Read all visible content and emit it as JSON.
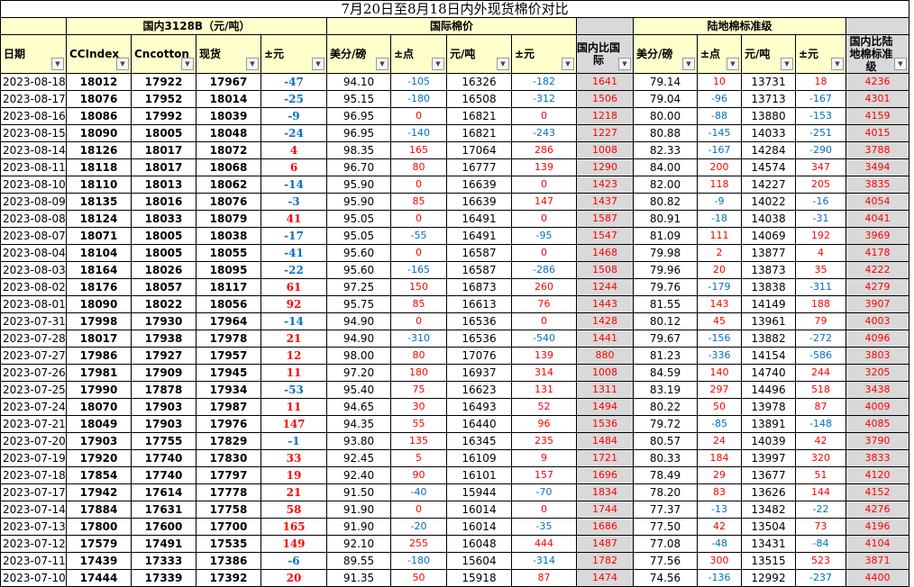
{
  "title": "7月20日至8月18日内外现货棉价对比",
  "groups": {
    "domestic": "国内3128B（元/吨）",
    "international": "国际棉价",
    "ratio_intl": "国内比国际",
    "upland": "陆地棉标准级",
    "ratio_upland": "国内比陆地棉标准级"
  },
  "headers": [
    "日期",
    "CCIndex",
    "Cncotton",
    "现货",
    "±元",
    "美分/磅",
    "±点",
    "元/吨",
    "±元",
    "国内比国际",
    "美分/磅",
    "±点",
    "元/吨",
    "±元",
    "国内比陆地棉标准级"
  ],
  "colors": {
    "header_bg": "#FFFFCC",
    "ratio_bg": "#D9D9D9",
    "positive": "#FF0000",
    "negative": "#0070C0"
  },
  "icons": {
    "filter": "dropdown-arrow-icon"
  },
  "rows": [
    [
      "2023-08-18",
      "18012",
      "17922",
      "17967",
      "-47",
      "94.10",
      "-105",
      "16326",
      "-182",
      "1641",
      "79.14",
      "10",
      "13731",
      "18",
      "4236"
    ],
    [
      "2023-08-17",
      "18076",
      "17952",
      "18014",
      "-25",
      "95.15",
      "-180",
      "16508",
      "-312",
      "1506",
      "79.04",
      "-96",
      "13713",
      "-167",
      "4301"
    ],
    [
      "2023-08-16",
      "18086",
      "17992",
      "18039",
      "-9",
      "96.95",
      "0",
      "16821",
      "0",
      "1218",
      "80.00",
      "-88",
      "13880",
      "-153",
      "4159"
    ],
    [
      "2023-08-15",
      "18090",
      "18005",
      "18048",
      "-24",
      "96.95",
      "-140",
      "16821",
      "-243",
      "1227",
      "80.88",
      "-145",
      "14033",
      "-251",
      "4015"
    ],
    [
      "2023-08-14",
      "18126",
      "18017",
      "18072",
      "4",
      "98.35",
      "165",
      "17064",
      "286",
      "1008",
      "82.33",
      "-167",
      "14284",
      "-290",
      "3788"
    ],
    [
      "2023-08-11",
      "18118",
      "18017",
      "18068",
      "6",
      "96.70",
      "80",
      "16777",
      "139",
      "1290",
      "84.00",
      "200",
      "14574",
      "347",
      "3494"
    ],
    [
      "2023-08-10",
      "18110",
      "18013",
      "18062",
      "-14",
      "95.90",
      "0",
      "16639",
      "0",
      "1423",
      "82.00",
      "118",
      "14227",
      "205",
      "3835"
    ],
    [
      "2023-08-09",
      "18135",
      "18016",
      "18076",
      "-3",
      "95.90",
      "85",
      "16639",
      "147",
      "1437",
      "80.82",
      "-9",
      "14022",
      "-16",
      "4054"
    ],
    [
      "2023-08-08",
      "18124",
      "18033",
      "18079",
      "41",
      "95.05",
      "0",
      "16491",
      "0",
      "1587",
      "80.91",
      "-18",
      "14038",
      "-31",
      "4041"
    ],
    [
      "2023-08-07",
      "18071",
      "18005",
      "18038",
      "-17",
      "95.05",
      "-55",
      "16491",
      "-95",
      "1547",
      "81.09",
      "111",
      "14069",
      "192",
      "3969"
    ],
    [
      "2023-08-04",
      "18104",
      "18005",
      "18055",
      "-41",
      "95.60",
      "0",
      "16587",
      "0",
      "1468",
      "79.98",
      "2",
      "13877",
      "4",
      "4178"
    ],
    [
      "2023-08-03",
      "18164",
      "18026",
      "18095",
      "-22",
      "95.60",
      "-165",
      "16587",
      "-286",
      "1508",
      "79.96",
      "20",
      "13873",
      "35",
      "4222"
    ],
    [
      "2023-08-02",
      "18176",
      "18057",
      "18117",
      "61",
      "97.25",
      "150",
      "16873",
      "260",
      "1244",
      "79.76",
      "-179",
      "13838",
      "-311",
      "4279"
    ],
    [
      "2023-08-01",
      "18090",
      "18022",
      "18056",
      "92",
      "95.75",
      "85",
      "16613",
      "76",
      "1443",
      "81.55",
      "143",
      "14149",
      "188",
      "3907"
    ],
    [
      "2023-07-31",
      "17998",
      "17930",
      "17964",
      "-14",
      "94.90",
      "0",
      "16536",
      "0",
      "1428",
      "80.12",
      "45",
      "13961",
      "79",
      "4003"
    ],
    [
      "2023-07-28",
      "18017",
      "17938",
      "17978",
      "21",
      "94.90",
      "-310",
      "16536",
      "-540",
      "1441",
      "79.67",
      "-156",
      "13882",
      "-272",
      "4096"
    ],
    [
      "2023-07-27",
      "17986",
      "17927",
      "17957",
      "12",
      "98.00",
      "80",
      "17076",
      "139",
      "880",
      "81.23",
      "-336",
      "14154",
      "-586",
      "3803"
    ],
    [
      "2023-07-26",
      "17981",
      "17909",
      "17945",
      "11",
      "97.20",
      "180",
      "16937",
      "314",
      "1008",
      "84.59",
      "140",
      "14740",
      "244",
      "3205"
    ],
    [
      "2023-07-25",
      "17990",
      "17878",
      "17934",
      "-53",
      "95.40",
      "75",
      "16623",
      "131",
      "1311",
      "83.19",
      "297",
      "14496",
      "518",
      "3438"
    ],
    [
      "2023-07-24",
      "18070",
      "17903",
      "17987",
      "11",
      "94.65",
      "30",
      "16493",
      "52",
      "1494",
      "80.22",
      "50",
      "13978",
      "87",
      "4009"
    ],
    [
      "2023-07-21",
      "18049",
      "17903",
      "17976",
      "147",
      "94.35",
      "55",
      "16440",
      "96",
      "1536",
      "79.72",
      "-85",
      "13891",
      "-148",
      "4085"
    ],
    [
      "2023-07-20",
      "17903",
      "17755",
      "17829",
      "-1",
      "93.80",
      "135",
      "16345",
      "235",
      "1484",
      "80.57",
      "24",
      "14039",
      "42",
      "3790"
    ],
    [
      "2023-07-19",
      "17920",
      "17740",
      "17830",
      "33",
      "92.45",
      "5",
      "16109",
      "9",
      "1721",
      "80.33",
      "184",
      "13997",
      "320",
      "3833"
    ],
    [
      "2023-07-18",
      "17854",
      "17740",
      "17797",
      "19",
      "92.40",
      "90",
      "16101",
      "157",
      "1696",
      "78.49",
      "29",
      "13677",
      "51",
      "4120"
    ],
    [
      "2023-07-17",
      "17942",
      "17614",
      "17778",
      "21",
      "91.50",
      "-40",
      "15944",
      "-70",
      "1834",
      "78.20",
      "83",
      "13626",
      "144",
      "4152"
    ],
    [
      "2023-07-14",
      "17884",
      "17631",
      "17758",
      "58",
      "91.90",
      "0",
      "16014",
      "0",
      "1744",
      "77.37",
      "-13",
      "13482",
      "-22",
      "4276"
    ],
    [
      "2023-07-13",
      "17800",
      "17600",
      "17700",
      "165",
      "91.90",
      "-20",
      "16014",
      "-35",
      "1686",
      "77.50",
      "42",
      "13504",
      "73",
      "4196"
    ],
    [
      "2023-07-12",
      "17579",
      "17491",
      "17535",
      "149",
      "92.10",
      "255",
      "16048",
      "444",
      "1487",
      "77.08",
      "-48",
      "13431",
      "-84",
      "4104"
    ],
    [
      "2023-07-11",
      "17439",
      "17333",
      "17386",
      "-6",
      "89.55",
      "-180",
      "15604",
      "-314",
      "1782",
      "77.56",
      "300",
      "13515",
      "523",
      "3871"
    ],
    [
      "2023-07-10",
      "17444",
      "17339",
      "17392",
      "20",
      "91.35",
      "50",
      "15918",
      "87",
      "1474",
      "74.56",
      "-136",
      "12992",
      "-237",
      "4400"
    ]
  ]
}
